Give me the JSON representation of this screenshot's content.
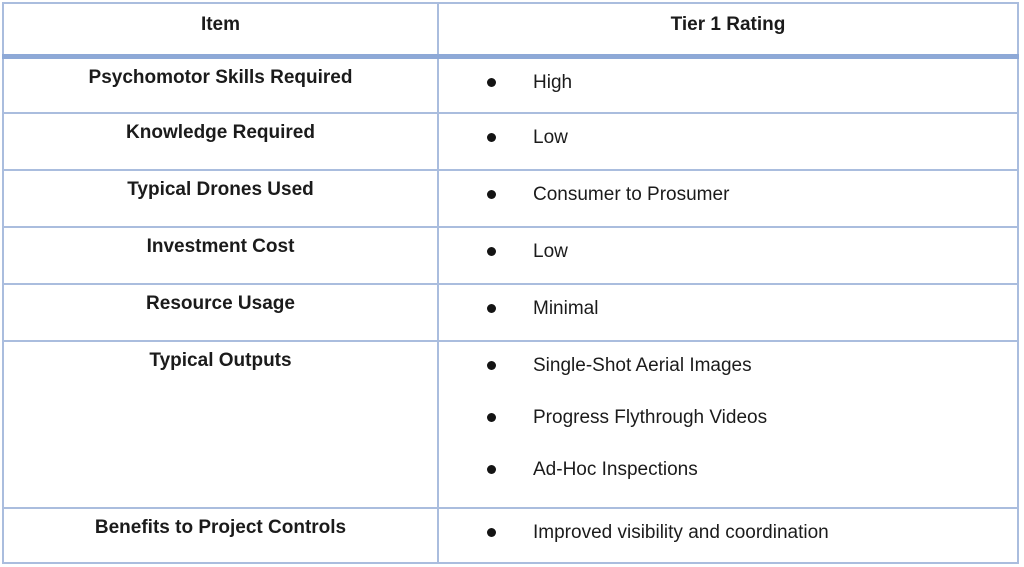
{
  "table": {
    "headers": [
      "Item",
      "Tier 1 Rating"
    ],
    "rows": [
      {
        "item": "Psychomotor Skills Required",
        "ratings": [
          "High"
        ]
      },
      {
        "item": "Knowledge Required",
        "ratings": [
          "Low"
        ]
      },
      {
        "item": "Typical Drones Used",
        "ratings": [
          "Consumer to Prosumer"
        ]
      },
      {
        "item": "Investment Cost",
        "ratings": [
          "Low"
        ]
      },
      {
        "item": "Resource Usage",
        "ratings": [
          "Minimal"
        ]
      },
      {
        "item": "Typical Outputs",
        "ratings": [
          "Single-Shot Aerial Images",
          "Progress Flythrough Videos",
          "Ad-Hoc Inspections"
        ]
      },
      {
        "item": "Benefits to Project Controls",
        "ratings": [
          "Improved visibility and coordination"
        ]
      }
    ],
    "colors": {
      "grid_line": "#aabdde",
      "header_separator": "#8ea9d7",
      "text": "#1b1b1b",
      "bullet": "#141414",
      "background": "#ffffff"
    }
  }
}
